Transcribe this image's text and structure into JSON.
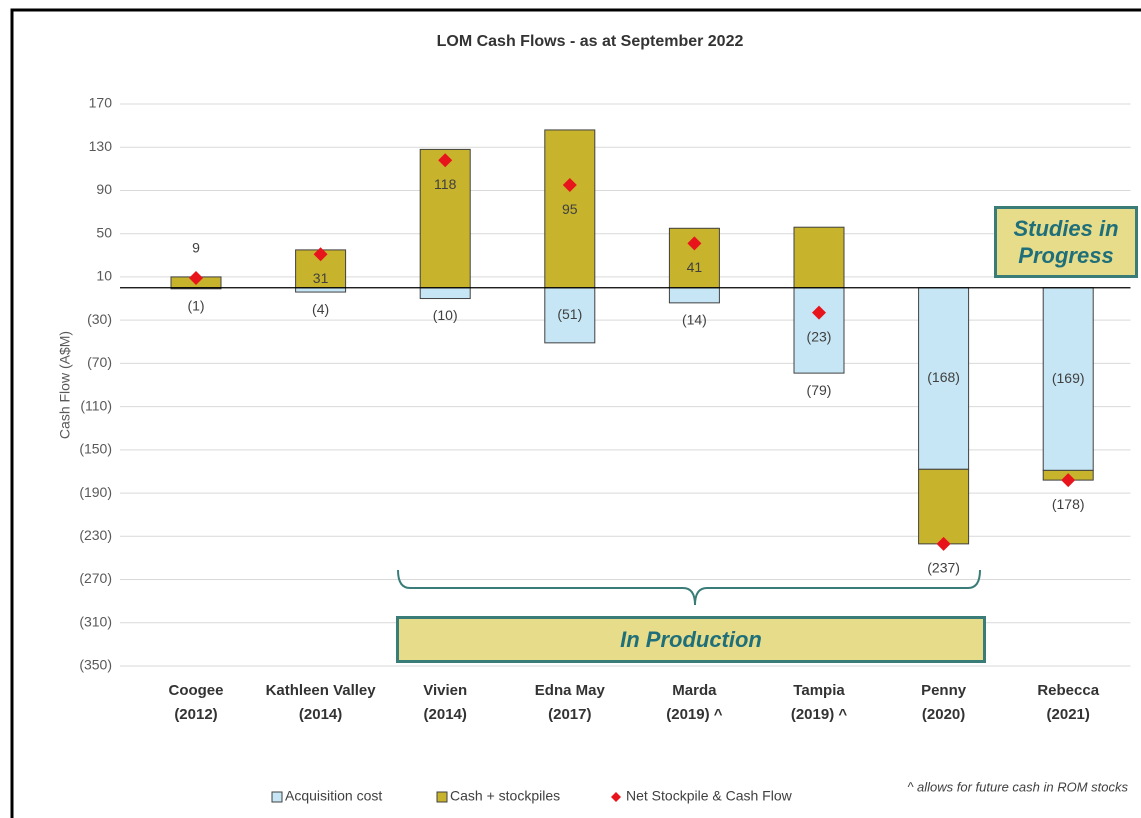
{
  "chart_data": {
    "type": "bar",
    "title": "LOM Cash Flows - as at September 2022",
    "ylabel": "Cash Flow (A$M)",
    "categories": [
      [
        "Coogee",
        "(2012)"
      ],
      [
        "Kathleen Valley",
        "(2014)"
      ],
      [
        "Vivien",
        "(2014)"
      ],
      [
        "Edna May",
        "(2017)"
      ],
      [
        "Marda",
        "(2019) ^"
      ],
      [
        "Tampia",
        "(2019) ^"
      ],
      [
        "Penny",
        "(2020)"
      ],
      [
        "Rebecca",
        "(2021)"
      ]
    ],
    "series": [
      {
        "name": "Acquisition cost",
        "color": "#c6e6f5",
        "values": [
          -1,
          -4,
          -10,
          -51,
          -14,
          -79,
          -168,
          -169
        ],
        "value_labels": [
          "(1)",
          "(4)",
          "(10)",
          "(51)",
          "(14)",
          "(79)",
          "(168)",
          "(169)"
        ]
      },
      {
        "name": "Cash + stockpiles",
        "color": "#c8b42c",
        "values": [
          10,
          35,
          128,
          146,
          55,
          56,
          -69,
          -9
        ]
      },
      {
        "name": "Net Stockpile & Cash Flow",
        "color": "#e8141c",
        "marker": "diamond",
        "values": [
          9,
          31,
          118,
          95,
          41,
          -23,
          -237,
          -178
        ],
        "value_labels": [
          "9",
          "31",
          "118",
          "95",
          "41",
          "(23)",
          "(237)",
          "(178)"
        ]
      }
    ],
    "ylim": [
      -350,
      170
    ],
    "yticks": [
      170,
      130,
      90,
      50,
      10,
      {
        "value": -30,
        "label": "(30)"
      },
      {
        "value": -70,
        "label": "(70)"
      },
      {
        "value": -110,
        "label": "(110)"
      },
      {
        "value": -150,
        "label": "(150)"
      },
      {
        "value": -190,
        "label": "(190)"
      },
      {
        "value": -230,
        "label": "(230)"
      },
      {
        "value": -270,
        "label": "(270)"
      },
      {
        "value": -310,
        "label": "(310)"
      },
      {
        "value": -350,
        "label": "(350)"
      }
    ],
    "grid": true,
    "legend": "bottom",
    "annotations": [
      "Studies in Progress",
      "In Production"
    ],
    "note": "^ allows for future cash in ROM stocks"
  }
}
